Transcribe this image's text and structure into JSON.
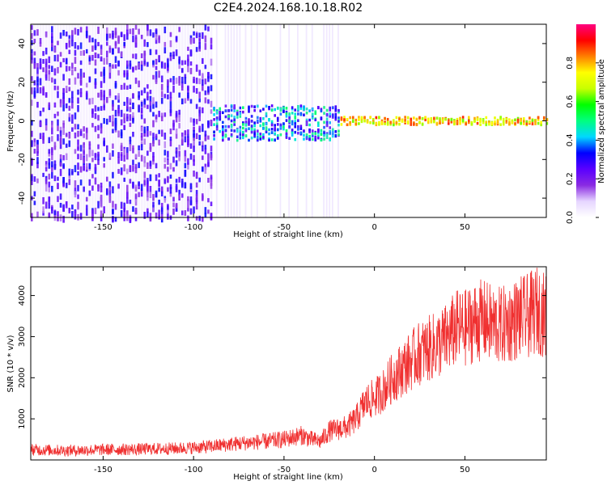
{
  "title": "C2E4.2024.168.10.18.R02",
  "chart_data": [
    {
      "type": "heatmap",
      "xlabel": "Height of straight line (km)",
      "ylabel": "Frequency (Hz)",
      "xlim": [
        -190,
        95
      ],
      "ylim": [
        -50,
        50
      ],
      "x_ticks": [
        -150,
        -100,
        -50,
        0,
        50
      ],
      "x_tick_labels": [
        "-150",
        "-100",
        "-50",
        "0",
        "50"
      ],
      "y_ticks": [
        -40,
        -20,
        0,
        20,
        40
      ],
      "y_tick_labels": [
        "-40",
        "-20",
        "0",
        "20",
        "40"
      ],
      "colorbar": {
        "label": "Normalized spectral amplitude",
        "range": [
          0,
          1
        ],
        "ticks": [
          0.0,
          0.2,
          0.4,
          0.6,
          0.8
        ],
        "tick_labels": [
          "0.0",
          "0.2",
          "0.4",
          "0.6",
          "0.8"
        ],
        "colormap": [
          "#ffffff",
          "#e6d6ff",
          "#8a2be2",
          "#5a00ff",
          "#0000ff",
          "#00d8ff",
          "#00ff80",
          "#00ff00",
          "#c8ff00",
          "#ffff00",
          "#ff8000",
          "#ff0000",
          "#ff0080"
        ]
      },
      "regions": [
        {
          "x_range": [
            -190,
            -90
          ],
          "frequency_spread": [
            -50,
            50
          ],
          "amplitude": "0.2-0.3"
        },
        {
          "x_range": [
            -90,
            -20
          ],
          "frequency_center": 0,
          "frequency_spread": [
            -10,
            8
          ],
          "amplitude": "0.2-0.55"
        },
        {
          "x_range": [
            -20,
            95
          ],
          "frequency_center": 0,
          "frequency_spread": [
            -2,
            2
          ],
          "amplitude": "0.6-0.9"
        }
      ],
      "grid": false
    },
    {
      "type": "line",
      "xlabel": "Height of straight line (km)",
      "ylabel": "SNR (10 * v/v)",
      "xlim": [
        -190,
        95
      ],
      "ylim": [
        0,
        4700
      ],
      "x_ticks": [
        -150,
        -100,
        -50,
        0,
        50
      ],
      "x_tick_labels": [
        "-150",
        "-100",
        "-50",
        "0",
        "50"
      ],
      "y_ticks": [
        1000,
        2000,
        3000,
        4000
      ],
      "y_tick_labels": [
        "1000",
        "2000",
        "3000",
        "4000"
      ],
      "color": "#f03030",
      "series": [
        {
          "x": [
            -190,
            -170,
            -150,
            -130,
            -110,
            -100,
            -90,
            -80,
            -70,
            -60,
            -50,
            -45,
            -40,
            -35,
            -30,
            -25,
            -20,
            -15,
            -10,
            -5,
            0,
            5,
            10,
            15,
            20,
            25,
            30,
            35,
            40,
            45,
            50,
            55,
            60,
            65,
            70,
            75,
            80,
            85,
            90,
            95
          ],
          "values": [
            250,
            230,
            250,
            260,
            280,
            300,
            330,
            380,
            420,
            450,
            500,
            550,
            600,
            500,
            450,
            700,
            750,
            800,
            1000,
            1400,
            1500,
            1700,
            2000,
            2200,
            2400,
            2600,
            2700,
            2800,
            2950,
            3200,
            3200,
            3350,
            3400,
            3300,
            3250,
            3350,
            3450,
            3500,
            3650,
            3500
          ]
        }
      ],
      "grid": false
    }
  ]
}
